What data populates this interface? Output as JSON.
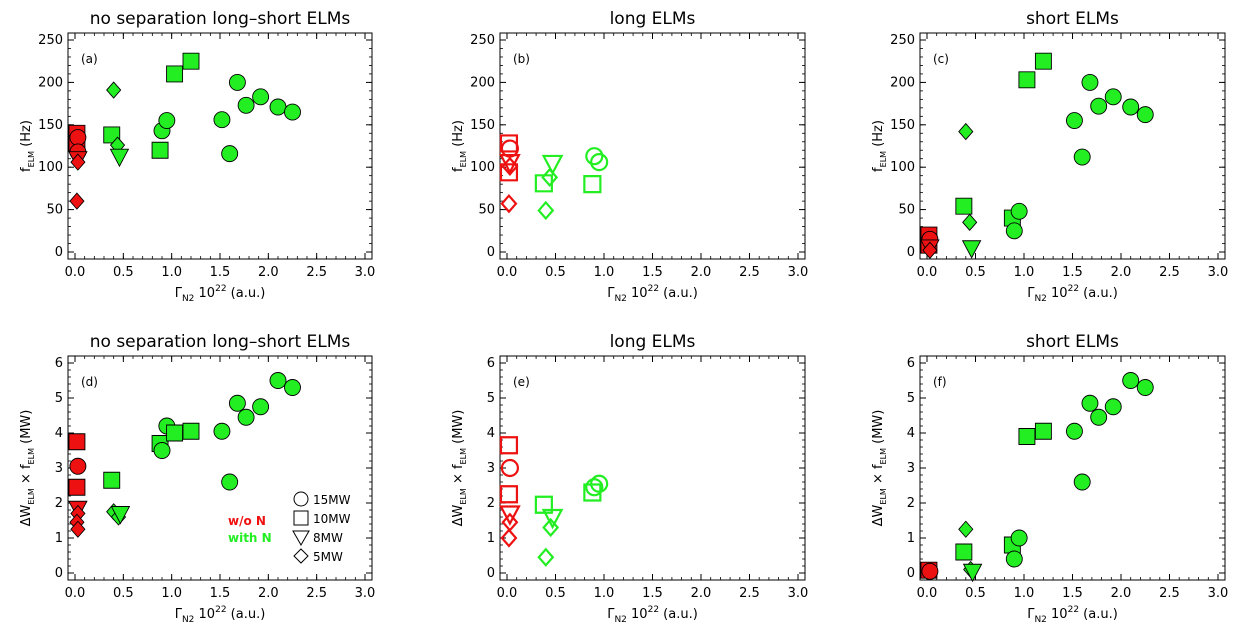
{
  "legend": {
    "shapes": [
      {
        "shape": "circle",
        "label": "15MW"
      },
      {
        "shape": "square",
        "label": "10MW"
      },
      {
        "shape": "triangle",
        "label": "8MW"
      },
      {
        "shape": "diamond",
        "label": "5MW"
      }
    ],
    "groups": [
      {
        "label": "w/o N",
        "color": "#ee1111"
      },
      {
        "label": "with N",
        "color": "#22ee22"
      }
    ]
  },
  "colors": {
    "red": "#ee1111",
    "green": "#22ee22",
    "outline": "#000000"
  },
  "chart_data": [
    {
      "type": "scatter",
      "label": "(a)",
      "title": "no separation long–short ELMs",
      "xlabel": "ΓN2 10^22 (a.u.)",
      "ylabel": "fELM (Hz)",
      "xlim": [
        0,
        3
      ],
      "ylim": [
        0,
        250
      ],
      "xticks": [
        "0.0",
        "0.5",
        "1.0",
        "1.5",
        "2.0",
        "2.5",
        "3.0"
      ],
      "yticks": [
        "0",
        "50",
        "100",
        "150",
        "200",
        "250"
      ],
      "fill": "solid",
      "points": [
        {
          "x": 0.02,
          "y": 140,
          "shape": "square",
          "group": "red"
        },
        {
          "x": 0.02,
          "y": 128,
          "shape": "square",
          "group": "red"
        },
        {
          "x": 0.03,
          "y": 135,
          "shape": "circle",
          "group": "red"
        },
        {
          "x": 0.03,
          "y": 118,
          "shape": "circle",
          "group": "red"
        },
        {
          "x": 0.03,
          "y": 110,
          "shape": "triangle",
          "group": "red"
        },
        {
          "x": 0.03,
          "y": 106,
          "shape": "diamond",
          "group": "red"
        },
        {
          "x": 0.02,
          "y": 60,
          "shape": "diamond",
          "group": "red"
        },
        {
          "x": 0.38,
          "y": 138,
          "shape": "square",
          "group": "green"
        },
        {
          "x": 0.4,
          "y": 191,
          "shape": "diamond",
          "group": "green"
        },
        {
          "x": 0.44,
          "y": 126,
          "shape": "diamond",
          "group": "green"
        },
        {
          "x": 0.46,
          "y": 113,
          "shape": "triangle",
          "group": "green"
        },
        {
          "x": 0.88,
          "y": 120,
          "shape": "square",
          "group": "green"
        },
        {
          "x": 0.9,
          "y": 143,
          "shape": "circle",
          "group": "green"
        },
        {
          "x": 0.95,
          "y": 155,
          "shape": "circle",
          "group": "green"
        },
        {
          "x": 1.03,
          "y": 210,
          "shape": "square",
          "group": "green"
        },
        {
          "x": 1.2,
          "y": 225,
          "shape": "square",
          "group": "green"
        },
        {
          "x": 1.52,
          "y": 156,
          "shape": "circle",
          "group": "green"
        },
        {
          "x": 1.6,
          "y": 116,
          "shape": "circle",
          "group": "green"
        },
        {
          "x": 1.68,
          "y": 200,
          "shape": "circle",
          "group": "green"
        },
        {
          "x": 1.77,
          "y": 173,
          "shape": "circle",
          "group": "green"
        },
        {
          "x": 1.92,
          "y": 183,
          "shape": "circle",
          "group": "green"
        },
        {
          "x": 2.1,
          "y": 171,
          "shape": "circle",
          "group": "green"
        },
        {
          "x": 2.25,
          "y": 165,
          "shape": "circle",
          "group": "green"
        }
      ]
    },
    {
      "type": "scatter",
      "label": "(b)",
      "title": "long ELMs",
      "xlabel": "ΓN2 10^22 (a.u.)",
      "ylabel": "fELM (Hz)",
      "xlim": [
        0,
        3
      ],
      "ylim": [
        0,
        250
      ],
      "xticks": [
        "0.0",
        "0.5",
        "1.0",
        "1.5",
        "2.0",
        "2.5",
        "3.0"
      ],
      "yticks": [
        "0",
        "50",
        "100",
        "150",
        "200",
        "250"
      ],
      "fill": "open",
      "points": [
        {
          "x": 0.02,
          "y": 128,
          "shape": "square",
          "group": "red"
        },
        {
          "x": 0.02,
          "y": 94,
          "shape": "square",
          "group": "red"
        },
        {
          "x": 0.03,
          "y": 122,
          "shape": "circle",
          "group": "red"
        },
        {
          "x": 0.03,
          "y": 106,
          "shape": "triangle",
          "group": "red"
        },
        {
          "x": 0.03,
          "y": 101,
          "shape": "diamond",
          "group": "red"
        },
        {
          "x": 0.02,
          "y": 57,
          "shape": "diamond",
          "group": "red"
        },
        {
          "x": 0.38,
          "y": 81,
          "shape": "square",
          "group": "green"
        },
        {
          "x": 0.4,
          "y": 49,
          "shape": "diamond",
          "group": "green"
        },
        {
          "x": 0.44,
          "y": 88,
          "shape": "diamond",
          "group": "green"
        },
        {
          "x": 0.47,
          "y": 105,
          "shape": "triangle",
          "group": "green"
        },
        {
          "x": 0.88,
          "y": 80,
          "shape": "square",
          "group": "green"
        },
        {
          "x": 0.9,
          "y": 113,
          "shape": "circle",
          "group": "green"
        },
        {
          "x": 0.95,
          "y": 106,
          "shape": "circle",
          "group": "green"
        }
      ]
    },
    {
      "type": "scatter",
      "label": "(c)",
      "title": "short ELMs",
      "xlabel": "ΓN2 10^22 (a.u.)",
      "ylabel": "fELM (Hz)",
      "xlim": [
        0,
        3
      ],
      "ylim": [
        0,
        250
      ],
      "xticks": [
        "0.0",
        "0.5",
        "1.0",
        "1.5",
        "2.0",
        "2.5",
        "3.0"
      ],
      "yticks": [
        "0",
        "50",
        "100",
        "150",
        "200",
        "250"
      ],
      "fill": "solid",
      "points": [
        {
          "x": 0.02,
          "y": 20,
          "shape": "square",
          "group": "red"
        },
        {
          "x": 0.02,
          "y": 8,
          "shape": "square",
          "group": "red"
        },
        {
          "x": 0.03,
          "y": 15,
          "shape": "circle",
          "group": "red"
        },
        {
          "x": 0.03,
          "y": 6,
          "shape": "triangle",
          "group": "red"
        },
        {
          "x": 0.03,
          "y": 2,
          "shape": "diamond",
          "group": "red"
        },
        {
          "x": 0.38,
          "y": 54,
          "shape": "square",
          "group": "green"
        },
        {
          "x": 0.4,
          "y": 142,
          "shape": "diamond",
          "group": "green"
        },
        {
          "x": 0.44,
          "y": 35,
          "shape": "diamond",
          "group": "green"
        },
        {
          "x": 0.46,
          "y": 5,
          "shape": "triangle",
          "group": "green"
        },
        {
          "x": 0.88,
          "y": 40,
          "shape": "square",
          "group": "green"
        },
        {
          "x": 0.9,
          "y": 25,
          "shape": "circle",
          "group": "green"
        },
        {
          "x": 0.95,
          "y": 48,
          "shape": "circle",
          "group": "green"
        },
        {
          "x": 1.03,
          "y": 203,
          "shape": "square",
          "group": "green"
        },
        {
          "x": 1.2,
          "y": 225,
          "shape": "square",
          "group": "green"
        },
        {
          "x": 1.52,
          "y": 155,
          "shape": "circle",
          "group": "green"
        },
        {
          "x": 1.6,
          "y": 112,
          "shape": "circle",
          "group": "green"
        },
        {
          "x": 1.68,
          "y": 200,
          "shape": "circle",
          "group": "green"
        },
        {
          "x": 1.77,
          "y": 172,
          "shape": "circle",
          "group": "green"
        },
        {
          "x": 1.92,
          "y": 183,
          "shape": "circle",
          "group": "green"
        },
        {
          "x": 2.1,
          "y": 171,
          "shape": "circle",
          "group": "green"
        },
        {
          "x": 2.25,
          "y": 162,
          "shape": "circle",
          "group": "green"
        }
      ]
    },
    {
      "type": "scatter",
      "label": "(d)",
      "title": "no separation long–short ELMs",
      "xlabel": "ΓN2 10^22 (a.u.)",
      "ylabel": "ΔWELM × fELM (MW)",
      "xlim": [
        0,
        3
      ],
      "ylim": [
        0,
        6
      ],
      "xticks": [
        "0.0",
        "0.5",
        "1.0",
        "1.5",
        "2.0",
        "2.5",
        "3.0"
      ],
      "yticks": [
        "0",
        "1",
        "2",
        "3",
        "4",
        "5",
        "6"
      ],
      "fill": "solid",
      "points": [
        {
          "x": 0.02,
          "y": 3.75,
          "shape": "square",
          "group": "red"
        },
        {
          "x": 0.02,
          "y": 2.45,
          "shape": "square",
          "group": "red"
        },
        {
          "x": 0.03,
          "y": 3.05,
          "shape": "circle",
          "group": "red"
        },
        {
          "x": 0.03,
          "y": 1.85,
          "shape": "triangle",
          "group": "red"
        },
        {
          "x": 0.03,
          "y": 1.7,
          "shape": "diamond",
          "group": "red"
        },
        {
          "x": 0.02,
          "y": 1.45,
          "shape": "diamond",
          "group": "red"
        },
        {
          "x": 0.03,
          "y": 1.25,
          "shape": "diamond",
          "group": "red"
        },
        {
          "x": 0.38,
          "y": 2.65,
          "shape": "square",
          "group": "green"
        },
        {
          "x": 0.4,
          "y": 1.75,
          "shape": "diamond",
          "group": "green"
        },
        {
          "x": 0.45,
          "y": 1.6,
          "shape": "diamond",
          "group": "green"
        },
        {
          "x": 0.47,
          "y": 1.7,
          "shape": "triangle",
          "group": "green"
        },
        {
          "x": 0.88,
          "y": 3.7,
          "shape": "square",
          "group": "green"
        },
        {
          "x": 0.9,
          "y": 3.5,
          "shape": "circle",
          "group": "green"
        },
        {
          "x": 0.95,
          "y": 4.2,
          "shape": "circle",
          "group": "green"
        },
        {
          "x": 1.03,
          "y": 4.0,
          "shape": "square",
          "group": "green"
        },
        {
          "x": 1.2,
          "y": 4.05,
          "shape": "square",
          "group": "green"
        },
        {
          "x": 1.52,
          "y": 4.05,
          "shape": "circle",
          "group": "green"
        },
        {
          "x": 1.6,
          "y": 2.6,
          "shape": "circle",
          "group": "green"
        },
        {
          "x": 1.68,
          "y": 4.85,
          "shape": "circle",
          "group": "green"
        },
        {
          "x": 1.77,
          "y": 4.45,
          "shape": "circle",
          "group": "green"
        },
        {
          "x": 1.92,
          "y": 4.75,
          "shape": "circle",
          "group": "green"
        },
        {
          "x": 2.1,
          "y": 5.5,
          "shape": "circle",
          "group": "green"
        },
        {
          "x": 2.25,
          "y": 5.3,
          "shape": "circle",
          "group": "green"
        }
      ]
    },
    {
      "type": "scatter",
      "label": "(e)",
      "title": "long ELMs",
      "xlabel": "ΓN2 10^22 (a.u.)",
      "ylabel": "ΔWELM × fELM (MW)",
      "xlim": [
        0,
        3
      ],
      "ylim": [
        0,
        6
      ],
      "xticks": [
        "0.0",
        "0.5",
        "1.0",
        "1.5",
        "2.0",
        "2.5",
        "3.0"
      ],
      "yticks": [
        "0",
        "1",
        "2",
        "3",
        "4",
        "5",
        "6"
      ],
      "fill": "open",
      "points": [
        {
          "x": 0.02,
          "y": 3.65,
          "shape": "square",
          "group": "red"
        },
        {
          "x": 0.02,
          "y": 2.25,
          "shape": "square",
          "group": "red"
        },
        {
          "x": 0.03,
          "y": 3.0,
          "shape": "circle",
          "group": "red"
        },
        {
          "x": 0.03,
          "y": 1.7,
          "shape": "triangle",
          "group": "red"
        },
        {
          "x": 0.03,
          "y": 1.45,
          "shape": "diamond",
          "group": "red"
        },
        {
          "x": 0.02,
          "y": 1.0,
          "shape": "diamond",
          "group": "red"
        },
        {
          "x": 0.38,
          "y": 1.95,
          "shape": "square",
          "group": "green"
        },
        {
          "x": 0.4,
          "y": 0.45,
          "shape": "diamond",
          "group": "green"
        },
        {
          "x": 0.45,
          "y": 1.3,
          "shape": "diamond",
          "group": "green"
        },
        {
          "x": 0.47,
          "y": 1.6,
          "shape": "triangle",
          "group": "green"
        },
        {
          "x": 0.88,
          "y": 2.3,
          "shape": "square",
          "group": "green"
        },
        {
          "x": 0.9,
          "y": 2.45,
          "shape": "circle",
          "group": "green"
        },
        {
          "x": 0.95,
          "y": 2.55,
          "shape": "circle",
          "group": "green"
        }
      ]
    },
    {
      "type": "scatter",
      "label": "(f)",
      "title": "short ELMs",
      "xlabel": "ΓN2 10^22 (a.u.)",
      "ylabel": "ΔWELM × fELM (MW)",
      "xlim": [
        0,
        3
      ],
      "ylim": [
        0,
        6
      ],
      "xticks": [
        "0.0",
        "0.5",
        "1.0",
        "1.5",
        "2.0",
        "2.5",
        "3.0"
      ],
      "yticks": [
        "0",
        "1",
        "2",
        "3",
        "4",
        "5",
        "6"
      ],
      "fill": "solid",
      "points": [
        {
          "x": 0.02,
          "y": 0.08,
          "shape": "square",
          "group": "red"
        },
        {
          "x": 0.03,
          "y": 0.05,
          "shape": "circle",
          "group": "red"
        },
        {
          "x": 0.38,
          "y": 0.6,
          "shape": "square",
          "group": "green"
        },
        {
          "x": 0.4,
          "y": 1.25,
          "shape": "diamond",
          "group": "green"
        },
        {
          "x": 0.45,
          "y": 0.1,
          "shape": "diamond",
          "group": "green"
        },
        {
          "x": 0.47,
          "y": 0.05,
          "shape": "triangle",
          "group": "green"
        },
        {
          "x": 0.88,
          "y": 0.8,
          "shape": "square",
          "group": "green"
        },
        {
          "x": 0.9,
          "y": 0.4,
          "shape": "circle",
          "group": "green"
        },
        {
          "x": 0.95,
          "y": 1.0,
          "shape": "circle",
          "group": "green"
        },
        {
          "x": 1.03,
          "y": 3.9,
          "shape": "square",
          "group": "green"
        },
        {
          "x": 1.2,
          "y": 4.05,
          "shape": "square",
          "group": "green"
        },
        {
          "x": 1.52,
          "y": 4.05,
          "shape": "circle",
          "group": "green"
        },
        {
          "x": 1.6,
          "y": 2.6,
          "shape": "circle",
          "group": "green"
        },
        {
          "x": 1.68,
          "y": 4.85,
          "shape": "circle",
          "group": "green"
        },
        {
          "x": 1.77,
          "y": 4.45,
          "shape": "circle",
          "group": "green"
        },
        {
          "x": 1.92,
          "y": 4.75,
          "shape": "circle",
          "group": "green"
        },
        {
          "x": 2.1,
          "y": 5.5,
          "shape": "circle",
          "group": "green"
        },
        {
          "x": 2.25,
          "y": 5.3,
          "shape": "circle",
          "group": "green"
        }
      ]
    }
  ]
}
